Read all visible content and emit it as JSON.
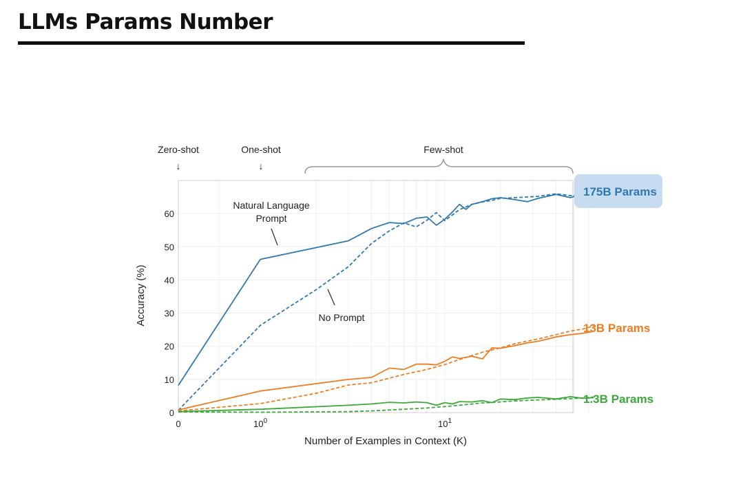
{
  "slide": {
    "title": "LLMs Params Number"
  },
  "colors": {
    "blue": "#2f79b0",
    "orange": "#ef7d1f",
    "green": "#3aa93a",
    "badge": "#c7dcf1"
  },
  "chart_data": {
    "type": "line",
    "xlabel": "Number of Examples in Context  (K)",
    "ylabel": "Accuracy (%)",
    "x_scale": "log-like (0 placed at left edge)",
    "x_ticks": [
      {
        "value": 0,
        "base": "0",
        "exp": ""
      },
      {
        "value": 1,
        "base": "10",
        "exp": "0"
      },
      {
        "value": 10,
        "base": "10",
        "exp": "1"
      }
    ],
    "y_ticks": [
      0,
      10,
      20,
      30,
      40,
      50,
      60
    ],
    "xlim": [
      0,
      64
    ],
    "ylim": [
      0,
      70
    ],
    "regions": [
      {
        "label": "Zero-shot",
        "arrow": "↓"
      },
      {
        "label": "One-shot",
        "arrow": "↓"
      },
      {
        "label": "Few-shot"
      }
    ],
    "annotations": [
      {
        "lines": [
          "Natural Language",
          "Prompt"
        ]
      },
      {
        "lines": [
          "No Prompt"
        ]
      }
    ],
    "series": [
      {
        "name": "175B Params",
        "color": "#2f79b0",
        "style": "solid",
        "x": [
          0,
          1,
          3,
          4,
          5,
          6,
          7,
          8,
          9,
          10,
          11,
          12,
          13,
          14,
          16,
          18,
          20,
          24,
          28,
          32,
          40,
          48,
          56,
          64
        ],
        "y": [
          8.2,
          46.2,
          51.8,
          55.5,
          57.3,
          57.0,
          58.6,
          59.0,
          56.5,
          58.3,
          60.5,
          62.8,
          61.3,
          62.8,
          63.6,
          64.5,
          64.8,
          64.2,
          63.6,
          64.6,
          65.8,
          64.8,
          66.1,
          66.2
        ]
      },
      {
        "name": "175B Params (no prompt)",
        "color": "#2f79b0",
        "style": "dashed",
        "x": [
          0,
          1,
          2,
          3,
          4,
          5,
          6,
          7,
          8,
          9,
          10,
          12,
          14,
          16,
          18,
          20,
          24,
          32,
          40,
          48,
          56,
          64
        ],
        "y": [
          0.7,
          26.3,
          37.0,
          44.0,
          51.0,
          54.8,
          57.2,
          56.0,
          58.0,
          60.3,
          57.9,
          61.2,
          62.8,
          63.5,
          64.0,
          64.6,
          64.8,
          65.2,
          66.0,
          65.4,
          65.8,
          66.3
        ]
      },
      {
        "name": "13B Params",
        "color": "#ef7d1f",
        "style": "solid",
        "x": [
          0,
          1,
          3,
          4,
          5,
          6,
          7,
          8,
          9,
          10,
          11,
          12,
          14,
          16,
          18,
          20,
          24,
          28,
          32,
          40,
          48,
          56,
          64
        ],
        "y": [
          0.8,
          6.5,
          10.0,
          10.6,
          13.4,
          13.0,
          14.6,
          14.6,
          14.4,
          15.5,
          16.8,
          16.3,
          17.0,
          16.2,
          19.5,
          19.4,
          20.2,
          21.0,
          21.5,
          22.8,
          23.5,
          23.9,
          24.5
        ]
      },
      {
        "name": "13B Params (no prompt)",
        "color": "#ef7d1f",
        "style": "dashed",
        "x": [
          0,
          1,
          2,
          3,
          4,
          6,
          8,
          10,
          12,
          14,
          16,
          20,
          24,
          32,
          40,
          48,
          56,
          64
        ],
        "y": [
          0.5,
          2.7,
          5.8,
          8.3,
          9.0,
          11.5,
          13.0,
          14.5,
          16.0,
          17.2,
          18.2,
          19.5,
          20.8,
          22.2,
          23.5,
          24.6,
          25.2,
          26.1
        ]
      },
      {
        "name": "1.3B Params",
        "color": "#3aa93a",
        "style": "solid",
        "x": [
          0,
          1,
          3,
          4,
          5,
          6,
          7,
          8,
          9,
          10,
          11,
          12,
          14,
          16,
          18,
          20,
          24,
          28,
          32,
          40,
          48,
          56,
          64
        ],
        "y": [
          0.3,
          1.0,
          2.2,
          2.6,
          3.1,
          2.9,
          3.2,
          3.0,
          2.2,
          3.0,
          2.6,
          3.3,
          3.2,
          3.6,
          3.0,
          4.1,
          3.9,
          4.4,
          4.6,
          4.1,
          4.8,
          4.3,
          4.5
        ]
      },
      {
        "name": "1.3B Params (no prompt)",
        "color": "#3aa93a",
        "style": "dashed",
        "x": [
          0,
          1,
          2,
          3,
          4,
          6,
          8,
          10,
          12,
          16,
          20,
          24,
          32,
          40,
          48,
          56,
          64
        ],
        "y": [
          0.2,
          0.1,
          0.2,
          0.3,
          0.5,
          1.0,
          1.4,
          1.8,
          2.2,
          2.9,
          3.2,
          3.5,
          3.8,
          4.0,
          4.2,
          4.4,
          4.7
        ]
      }
    ],
    "series_labels": [
      {
        "text": "175B Params",
        "color": "#2f79b0",
        "badge": true
      },
      {
        "text": "13B Params",
        "color": "#ef7d1f",
        "badge": false
      },
      {
        "text": "1.3B Params",
        "color": "#3aa93a",
        "badge": false
      }
    ]
  }
}
